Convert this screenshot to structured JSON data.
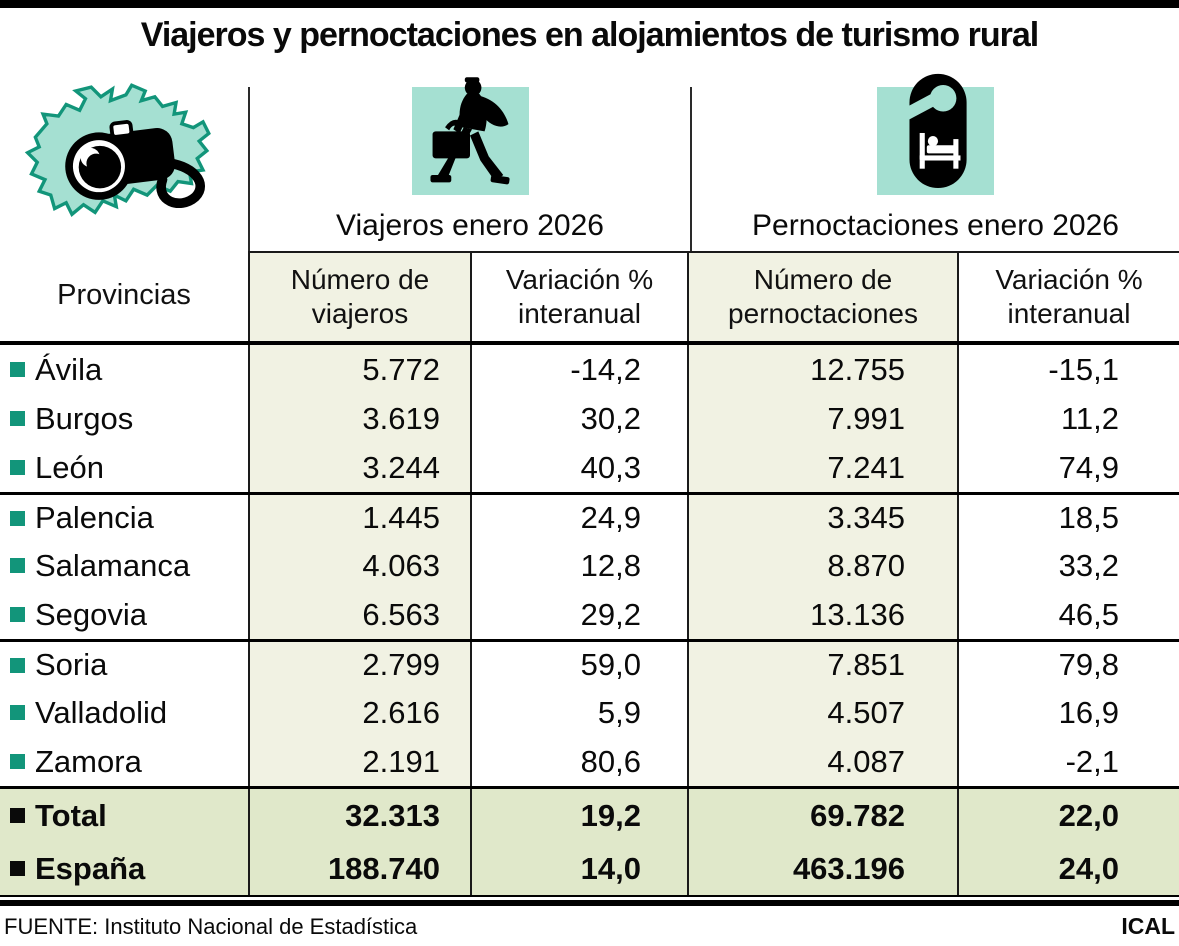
{
  "title": "Viajeros y pernoctaciones en alojamientos de turismo rural",
  "header": {
    "provinces_label": "Provincias",
    "groups": [
      {
        "label": "Viajeros enero 2026",
        "icon": "walking-traveler-icon"
      },
      {
        "label": "Pernoctaciones enero 2026",
        "icon": "door-hanger-bed-icon"
      }
    ],
    "columns": [
      {
        "line1": "Número de",
        "line2": "viajeros"
      },
      {
        "line1": "Variación %",
        "line2": "interanual"
      },
      {
        "line1": "Número de",
        "line2": "pernoctaciones"
      },
      {
        "line1": "Variación %",
        "line2": "interanual"
      }
    ],
    "map_icon": "castilla-y-leon-map-with-camera"
  },
  "table": {
    "provinces": [
      {
        "name": "Ávila",
        "num_viajeros": "5.772",
        "var_viajeros": "-14,2",
        "num_pernoctaciones": "12.755",
        "var_pernoctaciones": "-15,1"
      },
      {
        "name": "Burgos",
        "num_viajeros": "3.619",
        "var_viajeros": "30,2",
        "num_pernoctaciones": "7.991",
        "var_pernoctaciones": "11,2"
      },
      {
        "name": "León",
        "num_viajeros": "3.244",
        "var_viajeros": "40,3",
        "num_pernoctaciones": "7.241",
        "var_pernoctaciones": "74,9"
      },
      {
        "name": "Palencia",
        "num_viajeros": "1.445",
        "var_viajeros": "24,9",
        "num_pernoctaciones": "3.345",
        "var_pernoctaciones": "18,5"
      },
      {
        "name": "Salamanca",
        "num_viajeros": "4.063",
        "var_viajeros": "12,8",
        "num_pernoctaciones": "8.870",
        "var_pernoctaciones": "33,2"
      },
      {
        "name": "Segovia",
        "num_viajeros": "6.563",
        "var_viajeros": "29,2",
        "num_pernoctaciones": "13.136",
        "var_pernoctaciones": "46,5"
      },
      {
        "name": "Soria",
        "num_viajeros": "2.799",
        "var_viajeros": "59,0",
        "num_pernoctaciones": "7.851",
        "var_pernoctaciones": "79,8"
      },
      {
        "name": "Valladolid",
        "num_viajeros": "2.616",
        "var_viajeros": "5,9",
        "num_pernoctaciones": "4.507",
        "var_pernoctaciones": "16,9"
      },
      {
        "name": "Zamora",
        "num_viajeros": "2.191",
        "var_viajeros": "80,6",
        "num_pernoctaciones": "4.087",
        "var_pernoctaciones": "-2,1"
      }
    ],
    "totals": [
      {
        "name": "Total",
        "num_viajeros": "32.313",
        "var_viajeros": "19,2",
        "num_pernoctaciones": "69.782",
        "var_pernoctaciones": "22,0"
      },
      {
        "name": "España",
        "num_viajeros": "188.740",
        "var_viajeros": "14,0",
        "num_pernoctaciones": "463.196",
        "var_pernoctaciones": "24,0"
      }
    ]
  },
  "footer": {
    "source": "FUENTE: Instituto Nacional de Estadística",
    "credit": "ICAL"
  },
  "colors": {
    "icon_teal_bg": "#a5e0d2",
    "bullet_teal": "#12957a",
    "map_outline_green": "#12957a",
    "column_shade": "#f1f2e3",
    "totals_row_bg": "#e0e8ca",
    "rule_black": "#000000"
  },
  "chart_data": {
    "type": "table",
    "title": "Viajeros y pernoctaciones en alojamientos de turismo rural",
    "columns": [
      "Provincias",
      "Número de viajeros (enero 2026)",
      "Variación % interanual viajeros",
      "Número de pernoctaciones (enero 2026)",
      "Variación % interanual pernoctaciones"
    ],
    "rows": [
      [
        "Ávila",
        5772,
        -14.2,
        12755,
        -15.1
      ],
      [
        "Burgos",
        3619,
        30.2,
        7991,
        11.2
      ],
      [
        "León",
        3244,
        40.3,
        7241,
        74.9
      ],
      [
        "Palencia",
        1445,
        24.9,
        3345,
        18.5
      ],
      [
        "Salamanca",
        4063,
        12.8,
        8870,
        33.2
      ],
      [
        "Segovia",
        6563,
        29.2,
        13136,
        46.5
      ],
      [
        "Soria",
        2799,
        59.0,
        7851,
        79.8
      ],
      [
        "Valladolid",
        2616,
        5.9,
        4507,
        16.9
      ],
      [
        "Zamora",
        2191,
        80.6,
        4087,
        -2.1
      ],
      [
        "Total",
        32313,
        19.2,
        69782,
        22.0
      ],
      [
        "España",
        188740,
        14.0,
        463196,
        24.0
      ]
    ]
  }
}
